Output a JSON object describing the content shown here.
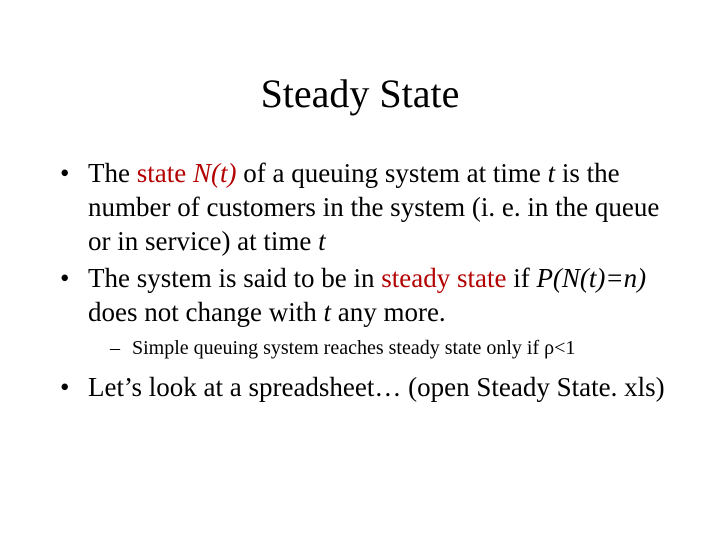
{
  "slide": {
    "title": "Steady State",
    "background_color": "#ffffff",
    "text_color": "#000000",
    "accent_color": "#b30000",
    "title_fontsize": 40,
    "body_fontsize": 27,
    "sub_fontsize": 20,
    "font_family": "Times New Roman",
    "bullets": [
      {
        "runs": [
          {
            "text": "The ",
            "color": "#000000",
            "italic": false
          },
          {
            "text": "state ",
            "color": "#b30000",
            "italic": false
          },
          {
            "text": "N(t)",
            "color": "#b30000",
            "italic": true
          },
          {
            "text": " of a queuing system at time ",
            "color": "#000000",
            "italic": false
          },
          {
            "text": "t",
            "color": "#000000",
            "italic": true
          },
          {
            "text": " is the number of customers in the system (i. e. in the queue or in service) at time ",
            "color": "#000000",
            "italic": false
          },
          {
            "text": "t",
            "color": "#000000",
            "italic": true
          }
        ]
      },
      {
        "runs": [
          {
            "text": "The system is said to be in ",
            "color": "#000000",
            "italic": false
          },
          {
            "text": "steady state",
            "color": "#b30000",
            "italic": false
          },
          {
            "text": " if ",
            "color": "#000000",
            "italic": false
          },
          {
            "text": "P(N(t)=n)",
            "color": "#000000",
            "italic": true
          },
          {
            "text": " does not change with ",
            "color": "#000000",
            "italic": false
          },
          {
            "text": "t",
            "color": "#000000",
            "italic": true
          },
          {
            "text": " any more.",
            "color": "#000000",
            "italic": false
          }
        ],
        "sub": [
          {
            "runs": [
              {
                "text": "Simple queuing system reaches steady state only if ",
                "color": "#000000",
                "italic": false
              },
              {
                "text": "ρ",
                "color": "#000000",
                "italic": false
              },
              {
                "text": "<1",
                "color": "#000000",
                "italic": false
              }
            ]
          }
        ]
      },
      {
        "runs": [
          {
            "text": "Let’s look at a spreadsheet… (open Steady State. xls)",
            "color": "#000000",
            "italic": false
          }
        ]
      }
    ]
  }
}
